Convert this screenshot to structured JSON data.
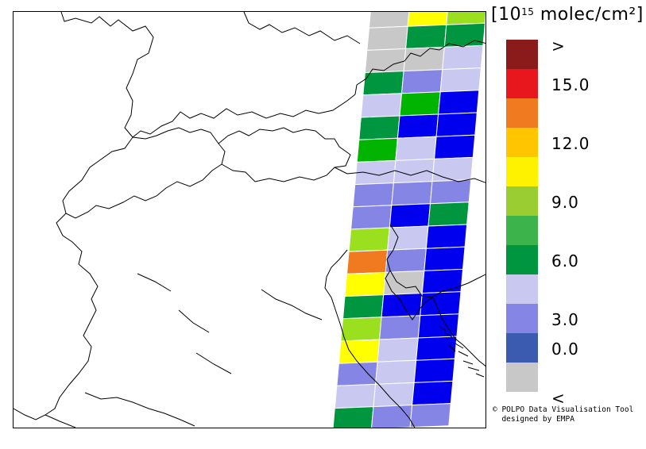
{
  "legend": {
    "unit_prefix": "[10",
    "unit_exponent": "15",
    "unit_suffix": " molec/cm²]",
    "ticks": [
      ">",
      "15.0",
      "12.0",
      "9.0",
      "6.0",
      "3.0",
      "0.0",
      "<"
    ],
    "colors": [
      "#8b1a1a",
      "#e8161d",
      "#f07a1f",
      "#ffc600",
      "#fff200",
      "#9acd32",
      "#3cb44b",
      "#00963f",
      "#c8c8f0",
      "#8585e6",
      "#3b5bb0",
      "#c8c8c8"
    ],
    "tick_band_index": [
      0,
      1,
      3,
      5,
      7,
      9,
      10,
      11
    ]
  },
  "credit": {
    "line1": "© POLPO Data Visualisation Tool",
    "line2": "designed by EMPA"
  },
  "map": {
    "projection_note": "",
    "color_map": {
      "gray": "#c8c8c8",
      "lav": "#c8c8f0",
      "mid": "#8585e6",
      "blue": "#0000ee",
      "green": "#00963f",
      "lgreen": "#00b400",
      "ygreen": "#9be01e",
      "yellow": "#ffff00",
      "orange": "#f07a1f"
    },
    "swath_rows": [
      [
        "gray",
        "yellow",
        "ygreen"
      ],
      [
        "gray",
        "green",
        "green"
      ],
      [
        "gray",
        "gray",
        "lav"
      ],
      [
        "green",
        "mid",
        "lav"
      ],
      [
        "lav",
        "lgreen",
        "blue"
      ],
      [
        "green",
        "blue",
        "blue"
      ],
      [
        "lgreen",
        "lav",
        "blue"
      ],
      [
        "lav",
        "lav",
        "lav"
      ],
      [
        "mid",
        "mid",
        "mid"
      ],
      [
        "mid",
        "blue",
        "green"
      ],
      [
        "ygreen",
        "lav",
        "blue"
      ],
      [
        "orange",
        "mid",
        "blue"
      ],
      [
        "yellow",
        "gray",
        "blue"
      ],
      [
        "green",
        "blue",
        "blue"
      ],
      [
        "ygreen",
        "mid",
        "blue"
      ],
      [
        "yellow",
        "lav",
        "blue"
      ],
      [
        "mid",
        "lav",
        "blue"
      ],
      [
        "lav",
        "lav",
        "blue"
      ],
      [
        "green",
        "mid",
        "mid"
      ]
    ]
  }
}
